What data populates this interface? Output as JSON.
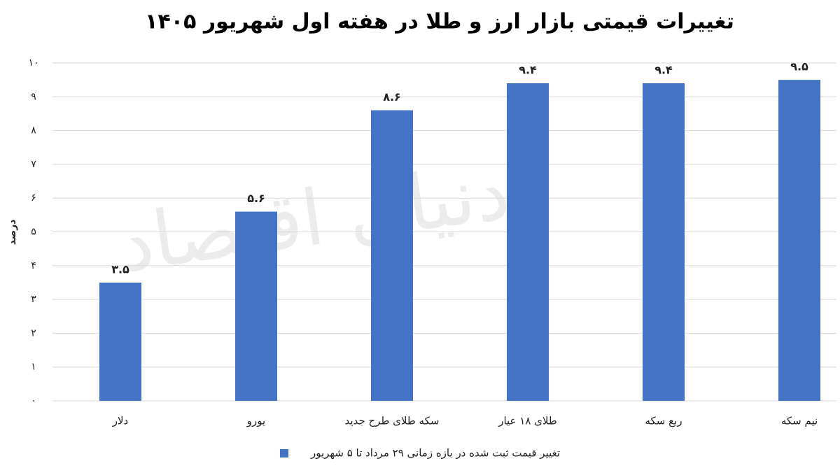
{
  "chart_data": {
    "type": "bar",
    "title": "تغییرات قیمتی بازار ارز و طلا در هفته اول شهریور ۱۴۰۵",
    "y_axis_label": "درصد",
    "watermark": "دنیای اقتصاد",
    "categories": [
      "دلار",
      "یورو",
      "سکه طلای طرح جدید",
      "طلای ۱۸ عیار",
      "ربع سکه",
      "نیم سکه"
    ],
    "series": [
      {
        "name": "تغییر قیمت ثبت شده در بازه زمانی ۲۹ مرداد تا ۵ شهریور",
        "color": "#4472c4",
        "values": [
          3.5,
          5.6,
          8.6,
          9.4,
          9.4,
          9.5
        ],
        "value_labels": [
          "۳.۵",
          "۵.۶",
          "۸.۶",
          "۹.۴",
          "۹.۴",
          "۹.۵"
        ]
      }
    ],
    "ylim": [
      0,
      10
    ],
    "yticks": [
      {
        "value": 0,
        "label": "۰"
      },
      {
        "value": 1,
        "label": "۱"
      },
      {
        "value": 2,
        "label": "۲"
      },
      {
        "value": 3,
        "label": "۳"
      },
      {
        "value": 4,
        "label": "۴"
      },
      {
        "value": 5,
        "label": "۵"
      },
      {
        "value": 6,
        "label": "۶"
      },
      {
        "value": 7,
        "label": "۷"
      },
      {
        "value": 8,
        "label": "۸"
      },
      {
        "value": 9,
        "label": "۹"
      },
      {
        "value": 10,
        "label": "۱۰"
      }
    ],
    "grid": true,
    "legend": "bottom"
  }
}
